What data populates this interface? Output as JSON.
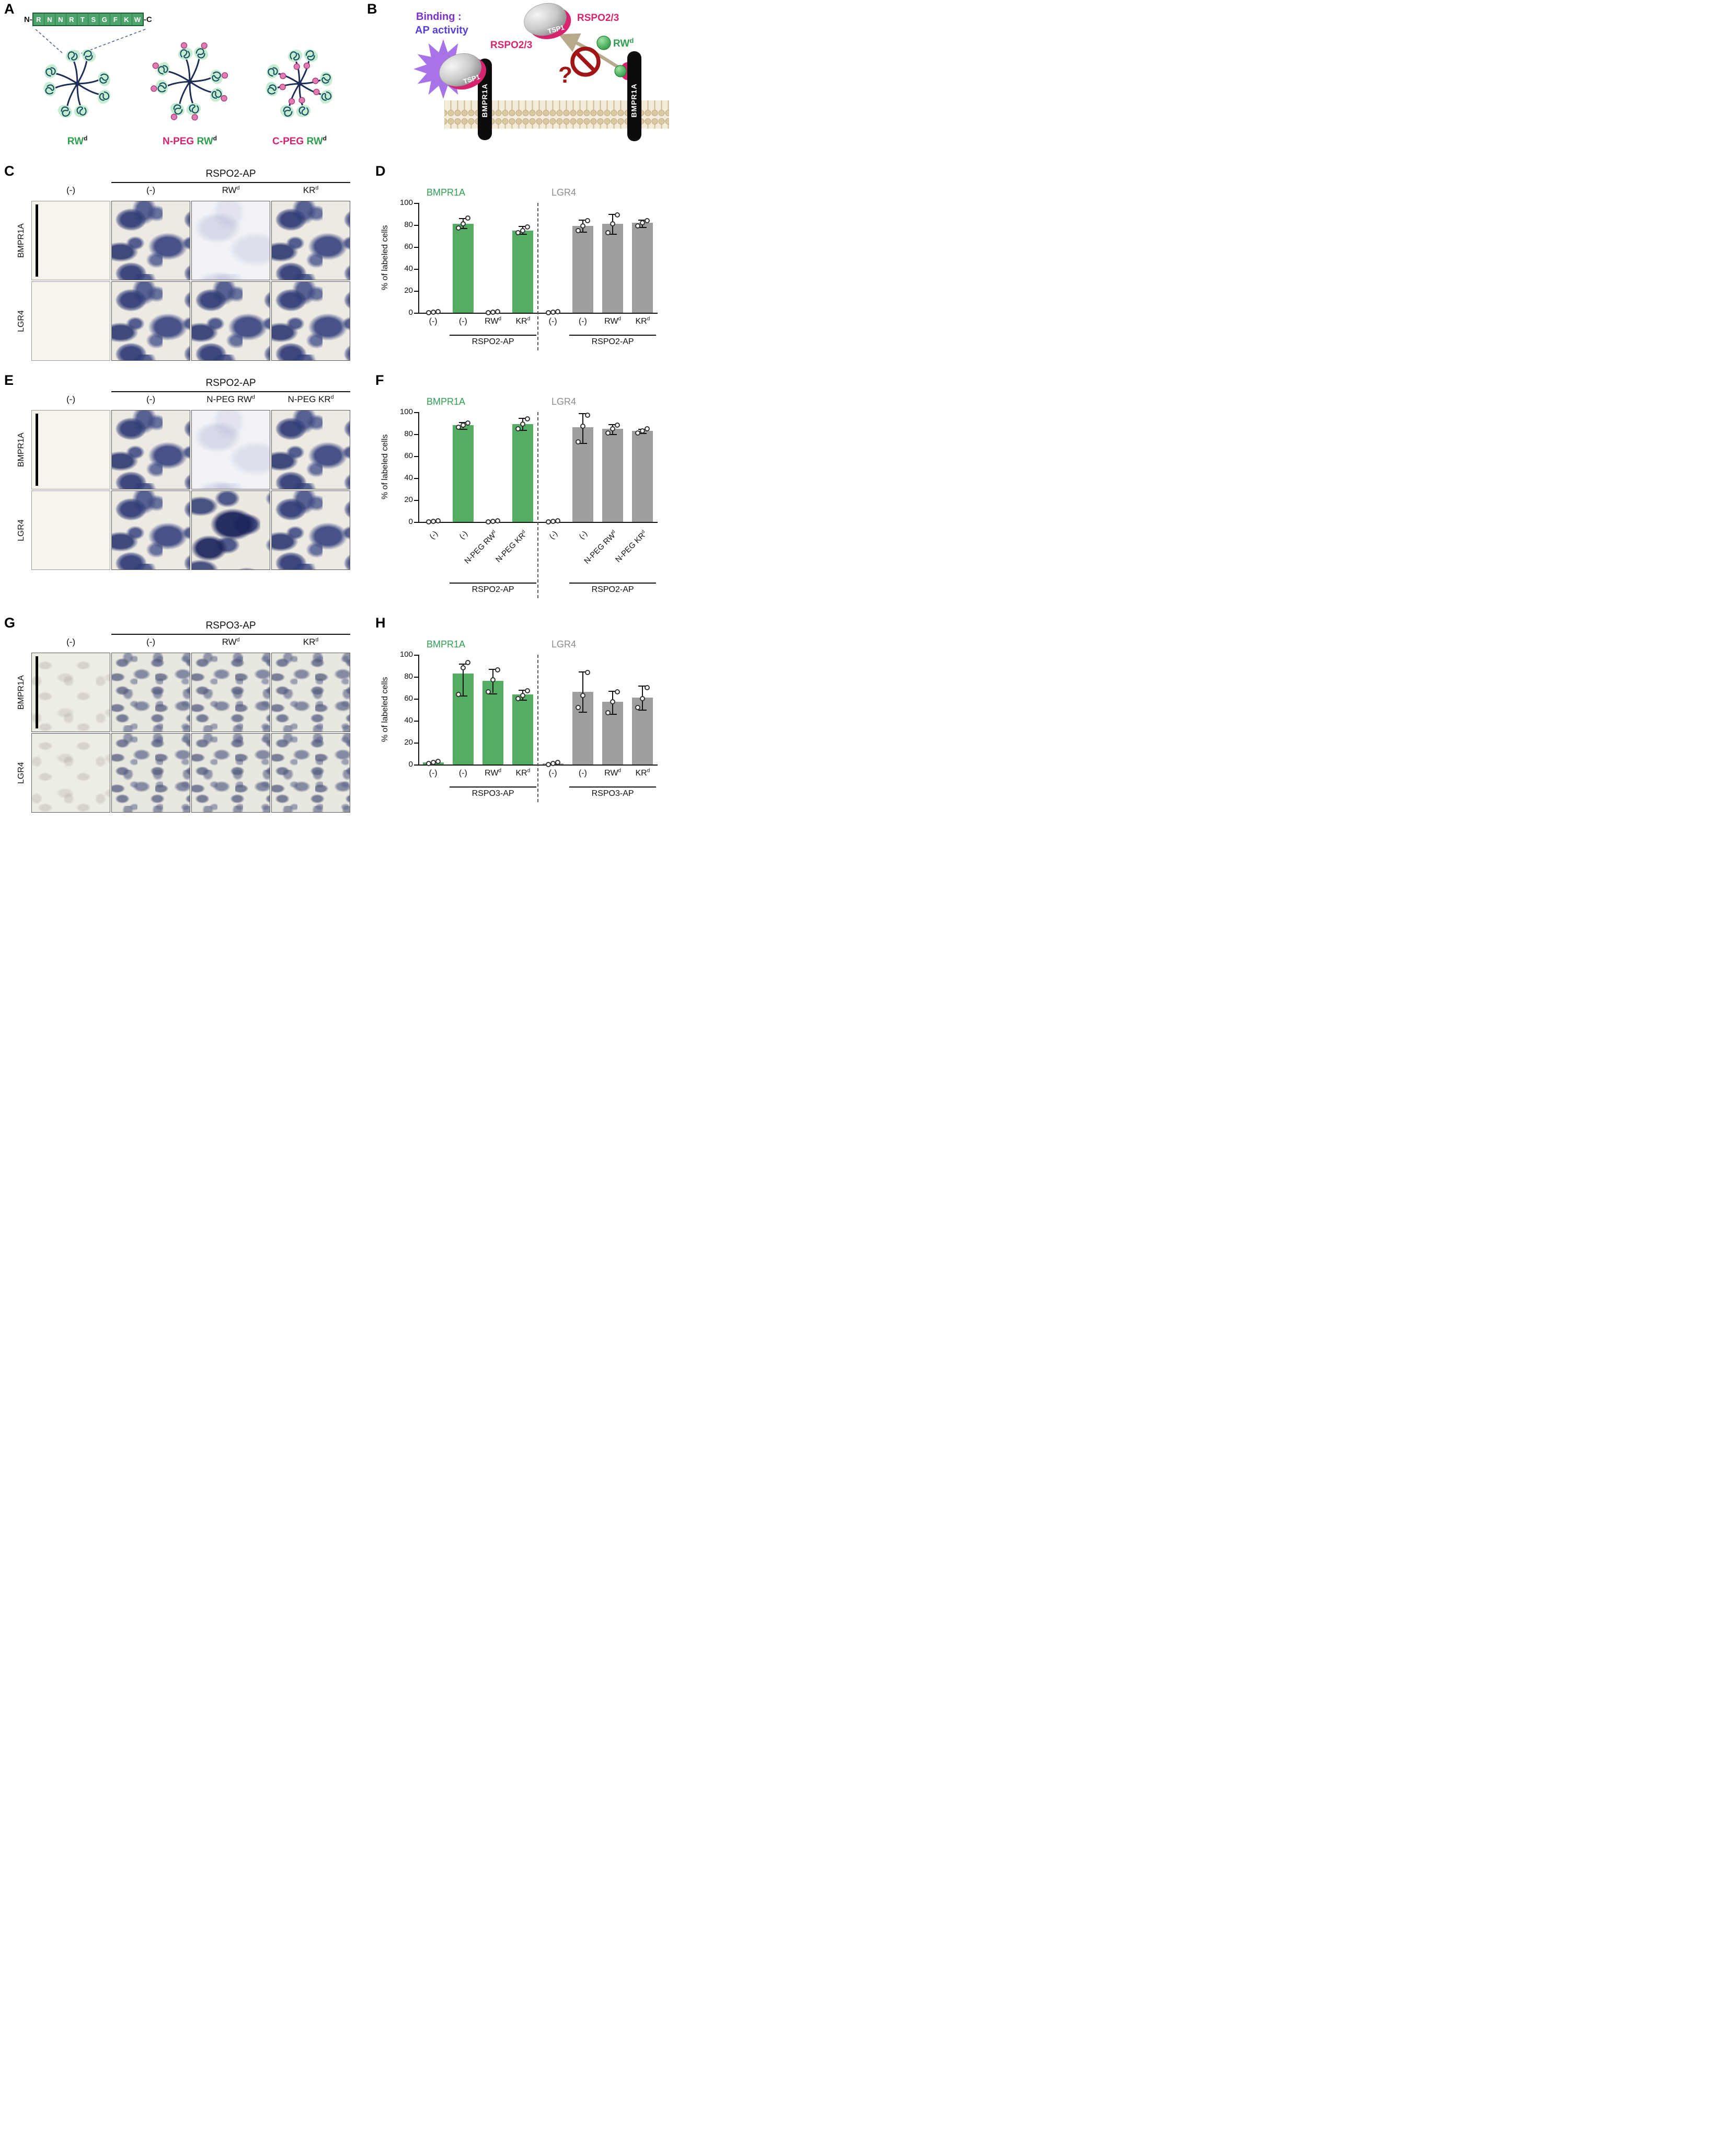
{
  "panel_a": {
    "label": "A",
    "sequence": {
      "n_label": "N-",
      "c_label": "-C",
      "residues": [
        "R",
        "N",
        "N",
        "R",
        "T",
        "S",
        "G",
        "F",
        "K",
        "W"
      ]
    },
    "dendrimers": [
      {
        "variant": "plain",
        "label_parts": [
          {
            "t": "RW",
            "color": "#2f9e4f",
            "sup": "d"
          }
        ]
      },
      {
        "variant": "n_peg",
        "label_parts": [
          {
            "t": "N-PEG ",
            "color": "#d6246e"
          },
          {
            "t": "RW",
            "color": "#2f9e4f",
            "sup": "d"
          }
        ]
      },
      {
        "variant": "c_peg",
        "label_parts": [
          {
            "t": "C-PEG ",
            "color": "#d6246e"
          },
          {
            "t": "RW",
            "color": "#2f9e4f",
            "sup": "d"
          }
        ]
      }
    ]
  },
  "panel_b": {
    "label": "B",
    "binding_line1": "Binding :",
    "binding_line2": "AP activity",
    "rspo_label_left": "RSPO2/3",
    "rspo_label_right": "RSPO2/3",
    "tsp1_left": "TSP1",
    "tsp1_right": "TSP1",
    "rw_text": "RW",
    "rw_sup": "d",
    "receptor_left": "BMPR1A",
    "receptor_right": "BMPR1A",
    "question_mark": "?"
  },
  "micro_panels": [
    {
      "id": "C",
      "label": "C",
      "header": "RSPO2-AP",
      "col_labels": [
        [
          {
            "t": "(-)"
          }
        ],
        [
          {
            "t": "(-)"
          }
        ],
        [
          {
            "t": "RW",
            "sup": "d"
          }
        ],
        [
          {
            "t": "KR",
            "sup": "d"
          }
        ]
      ],
      "row_labels": [
        "BMPR1A",
        "LGR4"
      ],
      "stains": [
        [
          "blank",
          "dense",
          "faintwash",
          "dense"
        ],
        [
          "blank",
          "dense",
          "dense",
          "dense"
        ]
      ],
      "scale_bar": true
    },
    {
      "id": "E",
      "label": "E",
      "header": "RSPO2-AP",
      "col_labels": [
        [
          {
            "t": "(-)"
          }
        ],
        [
          {
            "t": "(-)"
          }
        ],
        [
          {
            "t": "N-PEG RW",
            "sup": "d"
          }
        ],
        [
          {
            "t": "N-PEG KR",
            "sup": "d"
          }
        ]
      ],
      "row_labels": [
        "BMPR1A",
        "LGR4"
      ],
      "stains": [
        [
          "blank",
          "dense",
          "faintwash",
          "dense"
        ],
        [
          "blank",
          "dense",
          "clumpy",
          "dense"
        ]
      ],
      "scale_bar": true
    },
    {
      "id": "G",
      "label": "G",
      "header": "RSPO3-AP",
      "col_labels": [
        [
          {
            "t": "(-)"
          }
        ],
        [
          {
            "t": "(-)"
          }
        ],
        [
          {
            "t": "RW",
            "sup": "d"
          }
        ],
        [
          {
            "t": "KR",
            "sup": "d"
          }
        ]
      ],
      "row_labels": [
        "BMPR1A",
        "LGR4"
      ],
      "stains": [
        [
          "ghost",
          "mesh",
          "mesh",
          "mesh"
        ],
        [
          "ghost",
          "mesh",
          "mesh",
          "mesh"
        ]
      ],
      "scale_bar": true
    }
  ],
  "chart_data": [
    {
      "id": "D",
      "label": "D",
      "type": "bar",
      "ylabel": "% of labeled cells",
      "ylim": [
        0,
        100
      ],
      "yticks": [
        0,
        20,
        40,
        60,
        80,
        100
      ],
      "rotate_x_labels": false,
      "groups": [
        {
          "title": "BMPR1A",
          "title_color": "#2f9e4f",
          "bar_color": "#53ae63",
          "bracket_label": "RSPO2-AP",
          "bracket_from": 1,
          "bracket_to": 3,
          "bars": [
            {
              "label": [
                {
                  "t": "(-)"
                }
              ],
              "value": 0,
              "points": [
                0,
                0.5,
                1
              ]
            },
            {
              "label": [
                {
                  "t": "(-)"
                }
              ],
              "value": 81,
              "err": [
                77,
                86
              ],
              "points": [
                77,
                81,
                86
              ]
            },
            {
              "label": [
                {
                  "t": "RW",
                  "sup": "d"
                }
              ],
              "value": 0.5,
              "points": [
                0,
                0.5,
                1
              ]
            },
            {
              "label": [
                {
                  "t": "KR",
                  "sup": "d"
                }
              ],
              "value": 75,
              "err": [
                72,
                79
              ],
              "points": [
                73,
                75,
                78
              ]
            }
          ]
        },
        {
          "title": "LGR4",
          "title_color": "#8c8c8c",
          "bar_color": "#9e9e9e",
          "bracket_label": "RSPO2-AP",
          "bracket_from": 1,
          "bracket_to": 3,
          "bars": [
            {
              "label": [
                {
                  "t": "(-)"
                }
              ],
              "value": 0,
              "points": [
                0,
                0.5,
                1
              ]
            },
            {
              "label": [
                {
                  "t": "(-)"
                }
              ],
              "value": 79,
              "err": [
                74,
                85
              ],
              "points": [
                75,
                79,
                84
              ]
            },
            {
              "label": [
                {
                  "t": "RW",
                  "sup": "d"
                }
              ],
              "value": 81,
              "err": [
                72,
                90
              ],
              "points": [
                73,
                81,
                89
              ]
            },
            {
              "label": [
                {
                  "t": "KR",
                  "sup": "d"
                }
              ],
              "value": 82,
              "err": [
                78,
                85
              ],
              "points": [
                79,
                82,
                84
              ]
            }
          ]
        }
      ]
    },
    {
      "id": "F",
      "label": "F",
      "type": "bar",
      "ylabel": "% of labeled cells",
      "ylim": [
        0,
        100
      ],
      "yticks": [
        0,
        20,
        40,
        60,
        80,
        100
      ],
      "rotate_x_labels": true,
      "groups": [
        {
          "title": "BMPR1A",
          "title_color": "#2f9e4f",
          "bar_color": "#53ae63",
          "bracket_label": "RSPO2-AP",
          "bracket_from": 1,
          "bracket_to": 3,
          "bars": [
            {
              "label": [
                {
                  "t": "(-)"
                }
              ],
              "value": 0,
              "points": [
                0,
                0.5,
                1
              ]
            },
            {
              "label": [
                {
                  "t": "(-)"
                }
              ],
              "value": 88,
              "err": [
                85,
                91
              ],
              "points": [
                86,
                88,
                90
              ]
            },
            {
              "label": [
                {
                  "t": "N-PEG RW",
                  "sup": "d"
                }
              ],
              "value": 0.5,
              "points": [
                0,
                0.5,
                1
              ]
            },
            {
              "label": [
                {
                  "t": "N-PEG KR",
                  "sup": "d"
                }
              ],
              "value": 89,
              "err": [
                84,
                95
              ],
              "points": [
                85,
                89,
                94
              ]
            }
          ]
        },
        {
          "title": "LGR4",
          "title_color": "#8c8c8c",
          "bar_color": "#9e9e9e",
          "bracket_label": "RSPO2-AP",
          "bracket_from": 1,
          "bracket_to": 3,
          "bars": [
            {
              "label": [
                {
                  "t": "(-)"
                }
              ],
              "value": 0,
              "points": [
                0,
                0.5,
                1
              ]
            },
            {
              "label": [
                {
                  "t": "(-)"
                }
              ],
              "value": 86,
              "err": [
                72,
                99
              ],
              "points": [
                73,
                87,
                97
              ]
            },
            {
              "label": [
                {
                  "t": "N-PEG RW",
                  "sup": "d"
                }
              ],
              "value": 85,
              "err": [
                80,
                89
              ],
              "points": [
                81,
                85,
                88
              ]
            },
            {
              "label": [
                {
                  "t": "N-PEG KR",
                  "sup": "d"
                }
              ],
              "value": 83,
              "err": [
                81,
                85
              ],
              "points": [
                81,
                83,
                85
              ]
            }
          ]
        }
      ]
    },
    {
      "id": "H",
      "label": "H",
      "type": "bar",
      "ylabel": "% of labeled cells",
      "ylim": [
        0,
        100
      ],
      "yticks": [
        0,
        20,
        40,
        60,
        80,
        100
      ],
      "rotate_x_labels": false,
      "groups": [
        {
          "title": "BMPR1A",
          "title_color": "#2f9e4f",
          "bar_color": "#53ae63",
          "bracket_label": "RSPO3-AP",
          "bracket_from": 1,
          "bracket_to": 3,
          "bars": [
            {
              "label": [
                {
                  "t": "(-)"
                }
              ],
              "value": 2,
              "points": [
                1,
                2,
                3
              ]
            },
            {
              "label": [
                {
                  "t": "(-)"
                }
              ],
              "value": 83,
              "err": [
                63,
                92
              ],
              "points": [
                64,
                88,
                93
              ]
            },
            {
              "label": [
                {
                  "t": "RW",
                  "sup": "d"
                }
              ],
              "value": 76,
              "err": [
                65,
                87
              ],
              "points": [
                66,
                77,
                86
              ]
            },
            {
              "label": [
                {
                  "t": "KR",
                  "sup": "d"
                }
              ],
              "value": 64,
              "err": [
                59,
                68
              ],
              "points": [
                60,
                63,
                67
              ]
            }
          ]
        },
        {
          "title": "LGR4",
          "title_color": "#8c8c8c",
          "bar_color": "#9e9e9e",
          "bracket_label": "RSPO3-AP",
          "bracket_from": 1,
          "bracket_to": 3,
          "bars": [
            {
              "label": [
                {
                  "t": "(-)"
                }
              ],
              "value": 1,
              "points": [
                0,
                1,
                2
              ]
            },
            {
              "label": [
                {
                  "t": "(-)"
                }
              ],
              "value": 66,
              "err": [
                48,
                85
              ],
              "points": [
                52,
                63,
                84
              ]
            },
            {
              "label": [
                {
                  "t": "RW",
                  "sup": "d"
                }
              ],
              "value": 57,
              "err": [
                46,
                67
              ],
              "points": [
                47,
                57,
                66
              ]
            },
            {
              "label": [
                {
                  "t": "KR",
                  "sup": "d"
                }
              ],
              "value": 61,
              "err": [
                50,
                72
              ],
              "points": [
                52,
                60,
                70
              ]
            }
          ]
        }
      ]
    }
  ]
}
